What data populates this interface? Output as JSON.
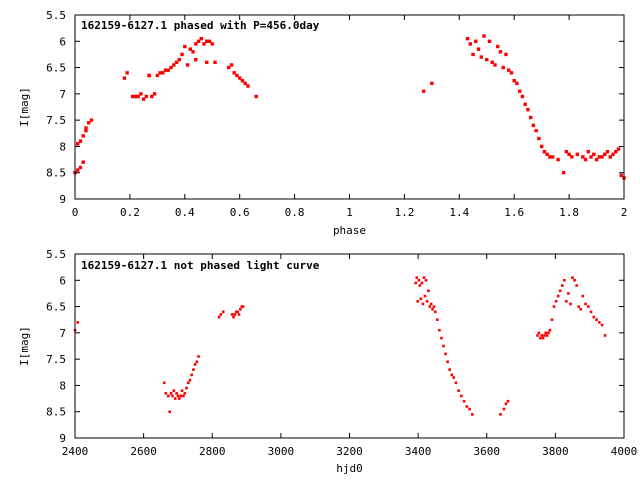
{
  "chart_data": [
    {
      "type": "scatter",
      "title": "162159-6127.1 phased with P=456.0day",
      "xlabel": "phase",
      "ylabel": "I[mag]",
      "xlim": [
        0,
        2
      ],
      "ylim": [
        5.5,
        9
      ],
      "y_inverted": true,
      "x_ticks": [
        "0",
        "0.2",
        "0.4",
        "0.6",
        "0.8",
        "1",
        "1.2",
        "1.4",
        "1.6",
        "1.8",
        "2"
      ],
      "y_ticks": [
        "5.5",
        "6",
        "6.5",
        "7",
        "7.5",
        "8",
        "8.5",
        "9"
      ],
      "marker_color": "#ff0000",
      "grid": false,
      "series": [
        {
          "x": [
            0.0,
            0.01,
            0.01,
            0.02,
            0.02,
            0.03,
            0.03,
            0.04,
            0.04,
            0.05,
            0.06,
            0.18,
            0.19,
            0.21,
            0.22,
            0.23,
            0.24,
            0.25,
            0.26,
            0.27,
            0.28,
            0.27,
            0.29,
            0.3,
            0.31,
            0.32,
            0.33,
            0.34,
            0.35,
            0.36,
            0.37,
            0.38,
            0.39,
            0.4,
            0.41,
            0.42,
            0.43,
            0.44,
            0.45,
            0.46,
            0.47,
            0.48,
            0.49,
            0.5,
            0.51,
            0.44,
            0.48,
            0.56,
            0.57,
            0.58,
            0.59,
            0.6,
            0.61,
            0.62,
            0.63,
            0.66,
            1.27,
            1.3,
            1.43,
            1.44,
            1.45,
            1.46,
            1.47,
            1.48,
            1.49,
            1.5,
            1.51,
            1.52,
            1.53,
            1.54,
            1.55,
            1.56,
            1.57,
            1.58,
            1.59,
            1.6,
            1.61,
            1.62,
            1.63,
            1.64,
            1.65,
            1.66,
            1.67,
            1.68,
            1.69,
            1.7,
            1.71,
            1.72,
            1.73,
            1.74,
            1.76,
            1.78,
            1.79,
            1.8,
            1.81,
            1.83,
            1.85,
            1.86,
            1.87,
            1.88,
            1.89,
            1.9,
            1.91,
            1.92,
            1.93,
            1.94,
            1.95,
            1.96,
            1.97,
            1.98,
            1.99,
            2.0
          ],
          "y": [
            8.5,
            7.95,
            8.45,
            8.4,
            7.9,
            8.3,
            7.8,
            7.7,
            7.65,
            7.55,
            7.5,
            6.7,
            6.6,
            7.05,
            7.05,
            7.05,
            7.0,
            7.1,
            7.05,
            6.65,
            7.05,
            6.65,
            7.0,
            6.65,
            6.6,
            6.6,
            6.55,
            6.55,
            6.5,
            6.45,
            6.4,
            6.35,
            6.25,
            6.1,
            6.45,
            6.15,
            6.2,
            6.05,
            6.0,
            5.95,
            6.05,
            6.0,
            6.0,
            6.05,
            6.4,
            6.35,
            6.4,
            6.5,
            6.45,
            6.6,
            6.65,
            6.7,
            6.75,
            6.8,
            6.85,
            7.05,
            6.95,
            6.8,
            5.95,
            6.05,
            6.25,
            6.0,
            6.15,
            6.3,
            5.9,
            6.35,
            6.0,
            6.4,
            6.45,
            6.1,
            6.2,
            6.5,
            6.25,
            6.55,
            6.6,
            6.75,
            6.8,
            6.95,
            7.05,
            7.2,
            7.3,
            7.45,
            7.6,
            7.7,
            7.85,
            8.0,
            8.1,
            8.15,
            8.2,
            8.2,
            8.25,
            8.5,
            8.1,
            8.15,
            8.2,
            8.15,
            8.2,
            8.25,
            8.1,
            8.2,
            8.15,
            8.25,
            8.2,
            8.2,
            8.15,
            8.1,
            8.2,
            8.15,
            8.1,
            8.05,
            8.55,
            8.6
          ]
        }
      ]
    },
    {
      "type": "scatter",
      "title": "162159-6127.1 not phased light curve",
      "xlabel": "hjd0",
      "ylabel": "I[mag]",
      "xlim": [
        2400,
        4000
      ],
      "ylim": [
        5.5,
        9
      ],
      "y_inverted": true,
      "x_ticks": [
        "2400",
        "2600",
        "2800",
        "3000",
        "3200",
        "3400",
        "3600",
        "3800",
        "4000"
      ],
      "y_ticks": [
        "5.5",
        "6",
        "6.5",
        "7",
        "7.5",
        "8",
        "8.5",
        "9"
      ],
      "marker_color": "#ff0000",
      "grid": false,
      "series": [
        {
          "x": [
            2400,
            2408,
            2660,
            2665,
            2672,
            2676,
            2680,
            2684,
            2688,
            2692,
            2696,
            2700,
            2704,
            2708,
            2712,
            2716,
            2720,
            2725,
            2730,
            2735,
            2740,
            2745,
            2750,
            2755,
            2760,
            2820,
            2825,
            2832,
            2858,
            2862,
            2866,
            2870,
            2874,
            2878,
            2882,
            2886,
            2890,
            3393,
            3396,
            3399,
            3402,
            3405,
            3408,
            3411,
            3414,
            3417,
            3420,
            3423,
            3426,
            3430,
            3434,
            3438,
            3442,
            3446,
            3450,
            3456,
            3462,
            3468,
            3474,
            3480,
            3486,
            3492,
            3498,
            3504,
            3510,
            3518,
            3526,
            3534,
            3542,
            3550,
            3558,
            3640,
            3650,
            3656,
            3662,
            3748,
            3752,
            3756,
            3760,
            3764,
            3768,
            3772,
            3776,
            3780,
            3784,
            3790,
            3796,
            3802,
            3808,
            3814,
            3820,
            3826,
            3832,
            3838,
            3844,
            3850,
            3856,
            3862,
            3868,
            3874,
            3880,
            3888,
            3896,
            3904,
            3912,
            3920,
            3928,
            3936,
            3945
          ],
          "y": [
            6.95,
            6.8,
            7.95,
            8.15,
            8.2,
            8.5,
            8.15,
            8.2,
            8.1,
            8.25,
            8.15,
            8.2,
            8.25,
            8.2,
            8.1,
            8.2,
            8.15,
            8.05,
            7.95,
            7.9,
            7.8,
            7.7,
            7.6,
            7.55,
            7.45,
            6.7,
            6.65,
            6.6,
            6.65,
            6.7,
            6.65,
            6.6,
            6.6,
            6.65,
            6.55,
            6.5,
            6.5,
            6.05,
            5.95,
            6.4,
            6.0,
            6.1,
            6.35,
            6.05,
            6.45,
            5.95,
            6.3,
            6.0,
            6.4,
            6.2,
            6.5,
            6.45,
            6.55,
            6.5,
            6.6,
            6.75,
            6.95,
            7.1,
            7.25,
            7.4,
            7.55,
            7.7,
            7.8,
            7.85,
            7.95,
            8.1,
            8.2,
            8.3,
            8.4,
            8.45,
            8.55,
            8.55,
            8.45,
            8.35,
            8.3,
            7.05,
            7.0,
            7.1,
            7.05,
            7.1,
            7.05,
            7.0,
            7.05,
            7.0,
            6.95,
            6.75,
            6.5,
            6.4,
            6.3,
            6.2,
            6.1,
            6.0,
            6.4,
            6.25,
            6.45,
            5.95,
            6.0,
            6.1,
            6.5,
            6.55,
            6.3,
            6.45,
            6.5,
            6.6,
            6.7,
            6.75,
            6.8,
            6.85,
            7.05
          ]
        }
      ]
    }
  ]
}
